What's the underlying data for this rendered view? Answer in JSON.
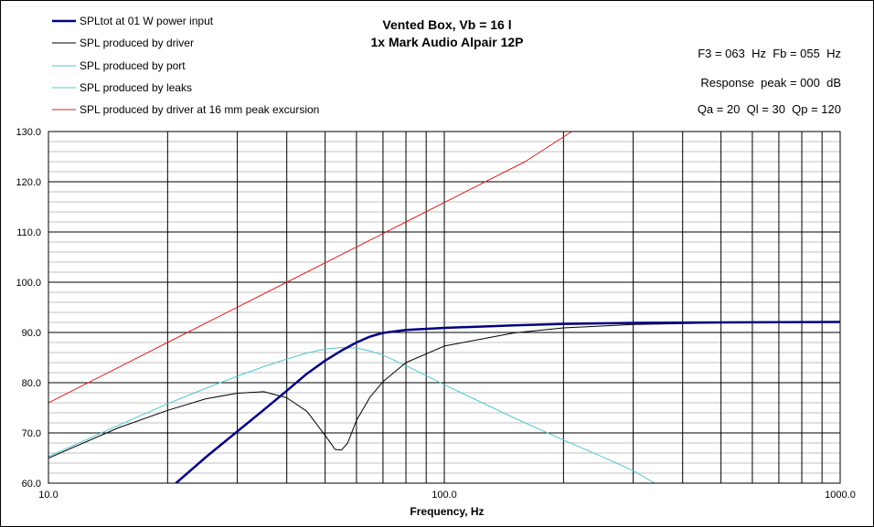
{
  "chart_data": {
    "type": "line",
    "title": "Vented Box, Vb = 16 l",
    "subtitle": "1x Mark Audio Alpair 12P",
    "xlabel": "Frequency, Hz",
    "ylabel": "",
    "xscale": "log",
    "xlim": [
      10,
      1000
    ],
    "ylim": [
      60,
      130
    ],
    "x_tick_labels": [
      "10.0",
      "100.0",
      "1000.0"
    ],
    "y_tick_labels": [
      "60.0",
      "70.0",
      "80.0",
      "90.0",
      "100.0",
      "110.0",
      "120.0",
      "130.0"
    ],
    "grid": true,
    "legend_position": "top-left",
    "info_lines": [
      "F3 = 063  Hz  Fb = 055  Hz",
      "Response  peak = 000  dB",
      "Qa = 20  Ql = 30  Qp = 120"
    ],
    "series": [
      {
        "name": "SPLtot at 01 W power input",
        "color": "#000080",
        "line_width": 2.5,
        "x": [
          21,
          25,
          30,
          35,
          40,
          45,
          50,
          55,
          60,
          65,
          70,
          80,
          100,
          150,
          200,
          300,
          500,
          1000
        ],
        "y": [
          60,
          65.2,
          70.3,
          74.6,
          78.4,
          81.8,
          84.4,
          86.4,
          88.0,
          89.2,
          89.9,
          90.5,
          90.9,
          91.4,
          91.7,
          91.9,
          92.0,
          92.1
        ]
      },
      {
        "name": "SPL produced by driver",
        "color": "#000000",
        "line_width": 1,
        "x": [
          10,
          15,
          20,
          25,
          30,
          35,
          40,
          45,
          50,
          53,
          55,
          57,
          60,
          65,
          70,
          80,
          100,
          150,
          200,
          300,
          500,
          1000
        ],
        "y": [
          65.0,
          71.0,
          74.5,
          76.8,
          77.9,
          78.2,
          77.0,
          74.3,
          69.5,
          66.7,
          66.6,
          68.0,
          72.5,
          77.2,
          80.2,
          84.0,
          87.3,
          89.9,
          90.9,
          91.6,
          91.9,
          92.1
        ]
      },
      {
        "name": "SPL produced by port",
        "color": "#4FC8D0",
        "line_width": 1,
        "x": [
          10,
          15,
          20,
          25,
          30,
          35,
          40,
          45,
          50,
          55,
          60,
          65,
          70,
          80,
          100,
          150,
          200,
          250,
          300,
          340
        ],
        "y": [
          65.3,
          71.5,
          75.8,
          78.9,
          81.3,
          83.2,
          84.7,
          85.9,
          86.7,
          87.0,
          86.9,
          86.3,
          85.5,
          83.4,
          79.6,
          73.0,
          68.6,
          65.3,
          62.5,
          60.0
        ]
      },
      {
        "name": "SPL produced by leaks",
        "color": "#4FC8D0",
        "line_width": 1,
        "x": [],
        "y": []
      },
      {
        "name": "SPL produced by driver at 16 mm peak excursion",
        "color": "#E02020",
        "line_width": 1,
        "x": [
          10,
          20,
          40,
          80,
          160,
          210
        ],
        "y": [
          76.0,
          88.0,
          100.0,
          112.0,
          124.0,
          130.0
        ]
      }
    ]
  }
}
